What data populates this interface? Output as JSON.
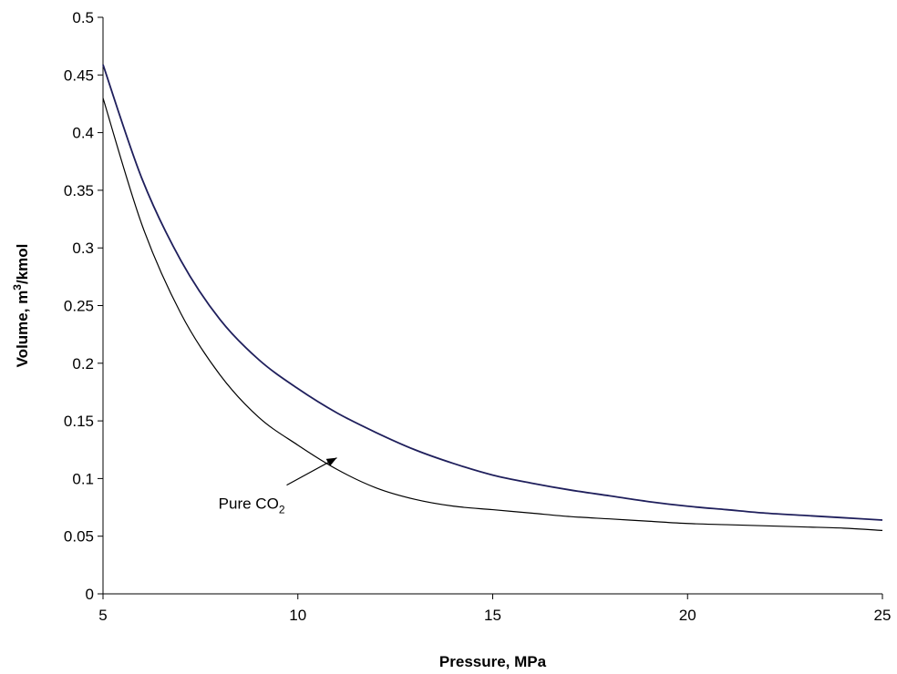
{
  "chart_data": {
    "type": "line",
    "xlabel": "Pressure, MPa",
    "ylabel_parts": {
      "pre": "Volume, m",
      "sup": "3",
      "post": "/kmol"
    },
    "xlim": [
      5,
      25
    ],
    "ylim": [
      0,
      0.5
    ],
    "x_ticks": [
      5,
      10,
      15,
      20,
      25
    ],
    "y_ticks": [
      0,
      0.05,
      0.1,
      0.15,
      0.2,
      0.25,
      0.3,
      0.35,
      0.4,
      0.45,
      0.5
    ],
    "grid": false,
    "legend": "none",
    "series": [
      {
        "color": "#1f1f5c",
        "x": [
          5,
          6,
          7,
          8,
          9,
          10,
          11,
          12,
          13,
          14,
          15,
          16,
          17,
          18,
          19,
          20,
          21,
          22,
          23,
          24,
          25
        ],
        "y": [
          0.459,
          0.36,
          0.289,
          0.238,
          0.203,
          0.178,
          0.157,
          0.14,
          0.125,
          0.113,
          0.103,
          0.096,
          0.09,
          0.085,
          0.08,
          0.076,
          0.073,
          0.07,
          0.068,
          0.066,
          0.064
        ]
      },
      {
        "color": "#000000",
        "x": [
          5,
          6,
          7,
          8,
          9,
          10,
          11,
          12,
          13,
          14,
          15,
          16,
          17,
          18,
          19,
          20,
          21,
          22,
          23,
          24,
          25
        ],
        "y": [
          0.43,
          0.32,
          0.243,
          0.19,
          0.153,
          0.129,
          0.108,
          0.092,
          0.082,
          0.076,
          0.073,
          0.07,
          0.067,
          0.065,
          0.063,
          0.061,
          0.06,
          0.059,
          0.058,
          0.057,
          0.055
        ]
      }
    ],
    "annotations": [
      {
        "label_parts": {
          "pre": "Pure CO",
          "sub": "2"
        },
        "arrow_to": {
          "x": 11,
          "y": 0.118
        }
      }
    ]
  }
}
